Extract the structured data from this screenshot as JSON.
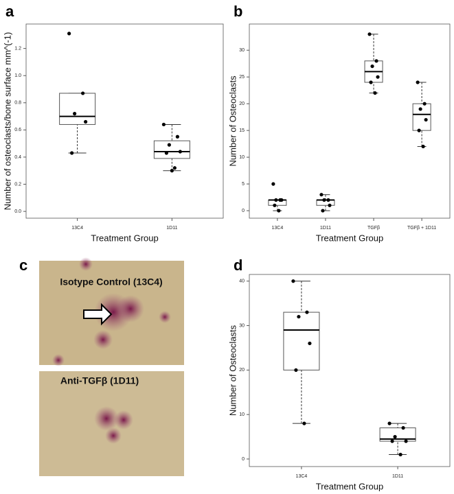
{
  "chart_data": [
    {
      "type": "box",
      "panel": "a",
      "ylabel": "Number of osteoclasts/bone surface mm^(-1)",
      "xlabel": "Treatment Group",
      "categories": [
        "13C4",
        "1D11"
      ],
      "boxes": [
        {
          "low": 0.43,
          "q1": 0.64,
          "median": 0.7,
          "q3": 0.87,
          "high": 0.87
        },
        {
          "low": 0.3,
          "q1": 0.39,
          "median": 0.44,
          "q3": 0.52,
          "high": 0.64
        }
      ],
      "points": [
        [
          1.31,
          0.87,
          0.72,
          0.66,
          0.43
        ],
        [
          0.64,
          0.55,
          0.49,
          0.44,
          0.43,
          0.32,
          0.3
        ]
      ],
      "color": "#000000",
      "ylim": [
        -0.05,
        1.38
      ],
      "yticks": [
        {
          "value": 0,
          "label": "0.0"
        },
        0.2,
        0.4,
        0.6,
        0.8,
        {
          "value": 1,
          "label": "1.0"
        },
        1.2
      ]
    },
    {
      "type": "box",
      "panel": "b",
      "ylabel": "Number of Osteoclasts",
      "xlabel": "Treatment Group",
      "categories": [
        "13C4",
        "1D11",
        "TGFβ",
        "TGFβ + 1D11"
      ],
      "boxes": [
        {
          "low": 0,
          "q1": 1,
          "median": 2,
          "q3": 2,
          "high": 2
        },
        {
          "low": 0,
          "q1": 1,
          "median": 2,
          "q3": 2,
          "high": 3
        },
        {
          "low": 22,
          "q1": 24,
          "median": 26,
          "q3": 28,
          "high": 33
        },
        {
          "low": 12,
          "q1": 15,
          "median": 18,
          "q3": 20,
          "high": 24
        }
      ],
      "points": [
        [
          5,
          2,
          2,
          2,
          1,
          0
        ],
        [
          3,
          2,
          2,
          1,
          0
        ],
        [
          33,
          28,
          27,
          25,
          24,
          22
        ],
        [
          24,
          20,
          19,
          17,
          15,
          12
        ]
      ],
      "color": "#000000",
      "ylim": [
        -1.4,
        34.9
      ],
      "yticks": [
        0,
        5,
        10,
        15,
        20,
        25,
        30
      ]
    },
    {
      "type": "box",
      "panel": "d",
      "ylabel": "Number of Osteoclasts",
      "xlabel": "Treatment Group",
      "categories": [
        "13C4",
        "1D11"
      ],
      "boxes": [
        {
          "low": 8,
          "q1": 20,
          "median": 29,
          "q3": 33,
          "high": 40
        },
        {
          "low": 1,
          "q1": 4,
          "median": 4.5,
          "q3": 7,
          "high": 8
        }
      ],
      "points": [
        [
          40,
          33,
          32,
          26,
          20,
          8
        ],
        [
          8,
          7,
          5,
          4,
          4,
          1
        ]
      ],
      "color": "#000000",
      "ylim": [
        -1.7,
        41.5
      ],
      "yticks": [
        0,
        10,
        20,
        30,
        40
      ]
    }
  ],
  "images": {
    "panel": "c",
    "labels": [
      "Isotype Control (13C4)",
      "Anti-TGFβ (1D11)"
    ]
  }
}
